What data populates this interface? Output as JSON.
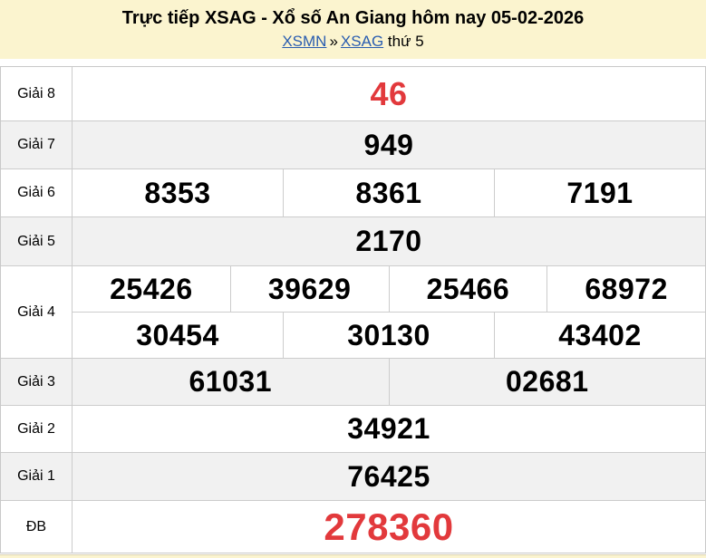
{
  "header": {
    "title": "Trực tiếp XSAG - Xổ số An Giang hôm nay 05-02-2026",
    "breadcrumb": {
      "region_link": "XSMN",
      "separator": "»",
      "province_link": "XSAG",
      "day_label": "thứ 5"
    }
  },
  "results": {
    "rows": [
      {
        "label": "Giải 8",
        "numbers": [
          "46"
        ]
      },
      {
        "label": "Giải 7",
        "numbers": [
          "949"
        ]
      },
      {
        "label": "Giải 6",
        "numbers": [
          "8353",
          "8361",
          "7191"
        ]
      },
      {
        "label": "Giải 5",
        "numbers": [
          "2170"
        ]
      },
      {
        "label": "Giải 4",
        "lines": [
          [
            "25426",
            "39629",
            "25466",
            "68972"
          ],
          [
            "30454",
            "30130",
            "43402"
          ]
        ]
      },
      {
        "label": "Giải 3",
        "numbers": [
          "61031",
          "02681"
        ]
      },
      {
        "label": "Giải 2",
        "numbers": [
          "34921"
        ]
      },
      {
        "label": "Giải 1",
        "numbers": [
          "76425"
        ]
      },
      {
        "label": "ĐB",
        "numbers": [
          "278360"
        ]
      }
    ]
  },
  "colors": {
    "header_bg": "#FBF4CF",
    "row_alt_bg": "#F1F1F1",
    "border": "#CCCCCC",
    "highlight_red": "#E2393C",
    "link_blue": "#2A5DB0"
  }
}
